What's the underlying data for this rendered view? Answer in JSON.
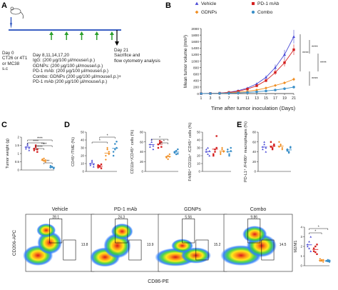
{
  "figure": {
    "panel_letters": [
      "A",
      "B",
      "C",
      "D",
      "E"
    ],
    "colors": {
      "vehicle": "#4b4bd6",
      "pd1": "#d42020",
      "gdnps": "#f08c1e",
      "combo": "#3a8fc8",
      "timeline_axis": "#3b5fc4",
      "treatment_arrow": "#2ca02c",
      "mouse_arrow": "#3b5fc4"
    }
  },
  "panel_a": {
    "day0_lines": [
      "Day 0",
      "CT26 or 4T1",
      "or MC38",
      "s.c"
    ],
    "treatment_lines": [
      "Day  8,11,14,17,20",
      "IgG: (200 μg/100 μl/mouse/i.p.)",
      "GDNPs: (200 μg/100 μl/mouse/i.p.)",
      "PD-1 mAb: (200 μg/100 μl/mouse/i.p.)",
      "Combo: GDNPs (200 μg/100 μl/mouse/i.p.)+",
      "PD-1 mAb (200 μg/100 μl/mouse/i.p.)"
    ],
    "endpoint_lines": [
      "Day  21",
      "Sacrifice and",
      "flow cytometry analysis"
    ],
    "treatment_days": [
      8,
      11,
      14,
      17,
      20
    ]
  },
  "panel_b": {
    "legend": [
      "Vehicle",
      "PD-1 mAb",
      "GDNPs",
      "Combo"
    ],
    "significance": [
      "****",
      "****",
      "****",
      "****"
    ]
  },
  "panel_c": {
    "significance": [
      "****",
      "****",
      "****",
      "****",
      "**"
    ]
  },
  "panel_d": {
    "significance": [
      "*",
      "*",
      "*",
      "*"
    ]
  },
  "panel_f": {
    "sample_titles": [
      "Vehicle",
      "PD-1 mAb",
      "GDNPs",
      "Combo"
    ],
    "gate_percents": [
      {
        "upper": "28.1",
        "right": "13.8"
      },
      {
        "upper": "24.3",
        "right": "13.9"
      },
      {
        "upper": "5.56",
        "right": "15.2"
      },
      {
        "upper": "9.86",
        "right": "14.5"
      }
    ],
    "significance": [
      "*",
      "*"
    ]
  },
  "chart_data": [
    {
      "type": "line",
      "panel": "B",
      "xlabel": "Time after tumor inoculation (Days)",
      "ylabel": "Mean tumor volume (mm³)",
      "x": [
        1,
        3,
        5,
        7,
        9,
        11,
        13,
        15,
        17,
        19,
        21
      ],
      "xlim": [
        1,
        21
      ],
      "ylim": [
        0,
        2000
      ],
      "yticks": [
        0,
        200,
        400,
        600,
        800,
        1000,
        1200,
        1400,
        1600,
        1800,
        2000
      ],
      "xticks": [
        1,
        3,
        5,
        7,
        9,
        11,
        13,
        15,
        17,
        19,
        21
      ],
      "legend_position": "top",
      "series": [
        {
          "name": "Vehicle",
          "values": [
            0,
            5,
            15,
            40,
            90,
            170,
            300,
            500,
            800,
            1200,
            1750
          ]
        },
        {
          "name": "PD-1 mAb",
          "values": [
            0,
            5,
            12,
            35,
            70,
            140,
            240,
            400,
            650,
            950,
            1350
          ]
        },
        {
          "name": "GDNPs",
          "values": [
            0,
            4,
            10,
            20,
            40,
            70,
            110,
            170,
            250,
            330,
            440
          ]
        },
        {
          "name": "Combo",
          "values": [
            0,
            3,
            6,
            12,
            20,
            35,
            55,
            80,
            110,
            150,
            200
          ]
        }
      ]
    },
    {
      "type": "scatter",
      "panel": "C",
      "ylabel": "Tumor weight (g)",
      "ylim": [
        0,
        2.0
      ],
      "yticks": [
        0,
        0.5,
        1.0,
        1.5,
        2.0
      ],
      "categories": [
        "Vehicle",
        "PD-1 mAb",
        "GDNPs",
        "Combo"
      ],
      "points": [
        [
          1.3,
          1.5,
          1.2,
          1.4,
          1.6,
          1.35
        ],
        [
          1.2,
          1.4,
          1.1,
          1.3,
          1.5,
          1.25
        ],
        [
          0.6,
          0.7,
          0.5,
          0.65,
          0.55,
          0.6
        ],
        [
          0.15,
          0.2,
          0.1,
          0.25,
          0.18,
          0.12
        ]
      ]
    },
    {
      "type": "scatter",
      "panel": "D1",
      "ylabel": "CD45⁺/TME (%)",
      "ylim": [
        0,
        50
      ],
      "yticks": [
        0,
        10,
        20,
        30,
        40,
        50
      ],
      "categories": [
        "Vehicle",
        "PD-1 mAb",
        "GDNPs",
        "Combo"
      ],
      "points": [
        [
          8,
          12,
          6,
          10,
          14,
          9
        ],
        [
          5,
          7,
          4,
          8,
          6,
          9
        ],
        [
          20,
          30,
          25,
          15,
          28,
          22
        ],
        [
          25,
          35,
          30,
          20,
          28,
          38
        ]
      ]
    },
    {
      "type": "scatter",
      "panel": "D2",
      "ylabel": "CD11b⁺/CD45⁺ cells (%)",
      "ylim": [
        0,
        80
      ],
      "yticks": [
        0,
        20,
        40,
        60,
        80
      ],
      "categories": [
        "Vehicle",
        "PD-1 mAb",
        "GDNPs",
        "Combo"
      ],
      "points": [
        [
          50,
          60,
          45,
          55,
          65,
          52
        ],
        [
          55,
          62,
          50,
          48,
          58,
          60
        ],
        [
          30,
          25,
          35,
          28,
          32,
          30
        ],
        [
          40,
          35,
          45,
          38,
          42,
          36
        ]
      ]
    },
    {
      "type": "scatter",
      "panel": "D3",
      "ylabel": "F4/80⁺ CD11b⁺ /CD45⁺ cells (%)",
      "ylim": [
        0,
        50
      ],
      "yticks": [
        0,
        10,
        20,
        30,
        40,
        50
      ],
      "categories": [
        "Vehicle",
        "PD-1 mAb",
        "GDNPs",
        "Combo"
      ],
      "points": [
        [
          25,
          30,
          20,
          28,
          22,
          26
        ],
        [
          22,
          28,
          45,
          20,
          25,
          30
        ],
        [
          24,
          30,
          26,
          22,
          28,
          25
        ],
        [
          25,
          20,
          30,
          28,
          22,
          26
        ]
      ]
    },
    {
      "type": "scatter",
      "panel": "E",
      "ylabel": "PD-L1⁺ /F4/80⁺ macrophages (%)",
      "ylim": [
        0,
        80
      ],
      "yticks": [
        0,
        20,
        40,
        60,
        80
      ],
      "categories": [
        "Vehicle",
        "PD-1 mAb",
        "GDNPs",
        "Combo"
      ],
      "points": [
        [
          45,
          55,
          40,
          50,
          60,
          48
        ],
        [
          50,
          45,
          55,
          60,
          48,
          52
        ],
        [
          50,
          55,
          45,
          60,
          52,
          48
        ],
        [
          45,
          40,
          50,
          42,
          38,
          48
        ]
      ]
    },
    {
      "type": "scatter",
      "panel": "F",
      "ylabel": "M2/M1",
      "ylim": [
        0,
        4
      ],
      "yticks": [
        0,
        1,
        2,
        3,
        4
      ],
      "categories": [
        "Vehicle",
        "PD-1 mAb",
        "GDNPs",
        "Combo"
      ],
      "points": [
        [
          2.0,
          2.5,
          1.5,
          2.2,
          1.8,
          3.0
        ],
        [
          1.5,
          2.0,
          1.2,
          1.8,
          1.4,
          2.2
        ],
        [
          0.5,
          0.6,
          0.4,
          0.7,
          0.5,
          0.6
        ],
        [
          0.5,
          0.6,
          0.4,
          0.5,
          0.45,
          0.55
        ]
      ]
    },
    {
      "type": "heatmap",
      "panel": "F-flow",
      "xlabel": "CD86-PE",
      "ylabel": "CD206-APC",
      "categories": [
        "Vehicle",
        "PD-1 mAb",
        "GDNPs",
        "Combo"
      ],
      "gate_upper_percent": [
        28.1,
        24.3,
        5.56,
        9.86
      ],
      "gate_right_percent": [
        13.8,
        13.9,
        15.2,
        14.5
      ]
    }
  ]
}
